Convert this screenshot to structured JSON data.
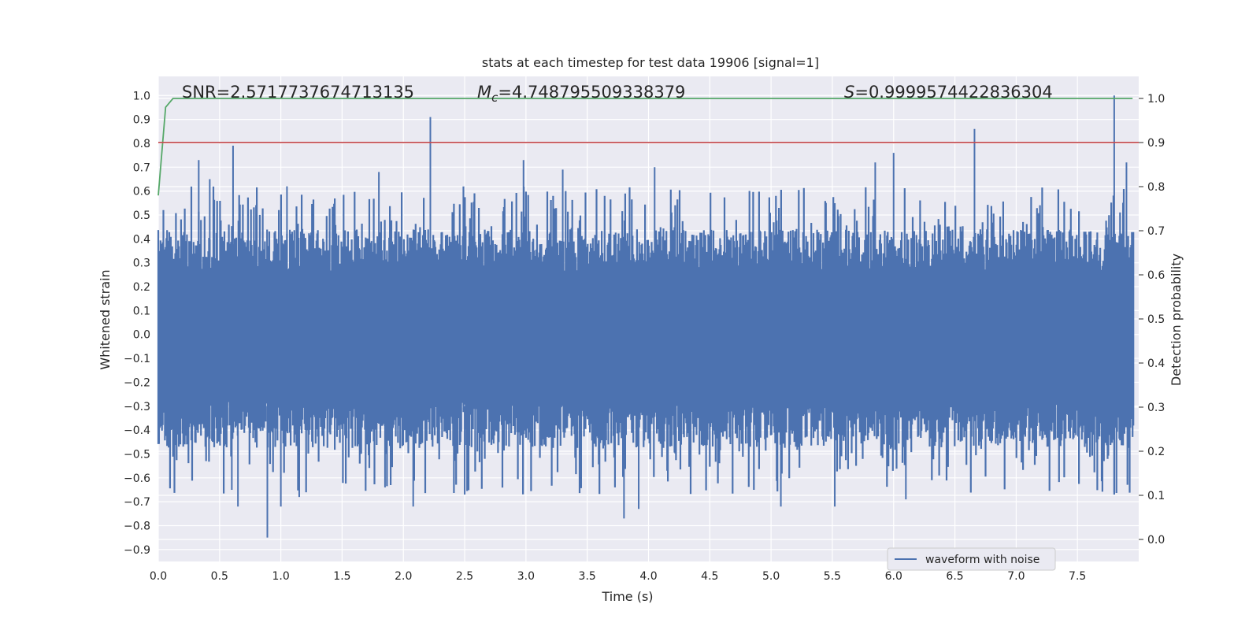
{
  "chart_data": {
    "type": "line",
    "title": "stats at each timestep for test data 19906 [signal=1]",
    "xlabel": "Time (s)",
    "ylabel": "Whitened strain",
    "y2label": "Detection probability",
    "xlim": [
      0.0,
      8.0
    ],
    "ylim": [
      -0.95,
      1.08
    ],
    "y2lim": [
      -0.05,
      1.05
    ],
    "xticks": [
      "0.0",
      "0.5",
      "1.0",
      "1.5",
      "2.0",
      "2.5",
      "3.0",
      "3.5",
      "4.0",
      "4.5",
      "5.0",
      "5.5",
      "6.0",
      "6.5",
      "7.0",
      "7.5"
    ],
    "yticks": [
      "-0.9",
      "-0.8",
      "-0.7",
      "-0.6",
      "-0.5",
      "-0.4",
      "-0.3",
      "-0.2",
      "-0.1",
      "0.0",
      "0.1",
      "0.2",
      "0.3",
      "0.4",
      "0.5",
      "0.6",
      "0.7",
      "0.8",
      "0.9",
      "1.0"
    ],
    "y2ticks": [
      "0.0",
      "0.1",
      "0.2",
      "0.3",
      "0.4",
      "0.5",
      "0.6",
      "0.7",
      "0.8",
      "0.9",
      "1.0"
    ],
    "annotations": {
      "snr": "SNR=2.5717737674713135",
      "mc_symbol": "M",
      "mc_sub": "c",
      "mc_value": "=4.748795509338379",
      "s_symbol": "S",
      "s_value": "=0.9999574422836304"
    },
    "series": [
      {
        "name": "waveform with noise",
        "axis": "left",
        "color": "#4c72b0",
        "spikes_up": [
          [
            0.33,
            0.73
          ],
          [
            0.42,
            0.65
          ],
          [
            0.61,
            0.79
          ],
          [
            1.05,
            0.62
          ],
          [
            1.8,
            0.68
          ],
          [
            2.22,
            0.91
          ],
          [
            2.98,
            0.73
          ],
          [
            3.3,
            0.69
          ],
          [
            4.05,
            0.7
          ],
          [
            5.85,
            0.72
          ],
          [
            6.0,
            0.76
          ],
          [
            6.66,
            0.86
          ],
          [
            7.8,
            1.0
          ],
          [
            7.9,
            0.72
          ]
        ],
        "spikes_down": [
          [
            0.6,
            -0.65
          ],
          [
            0.65,
            -0.72
          ],
          [
            0.89,
            -0.85
          ],
          [
            1.0,
            -0.72
          ],
          [
            1.15,
            -0.68
          ],
          [
            1.85,
            -0.64
          ],
          [
            2.08,
            -0.72
          ],
          [
            2.5,
            -0.67
          ],
          [
            3.8,
            -0.77
          ],
          [
            3.92,
            -0.73
          ],
          [
            5.08,
            -0.72
          ],
          [
            5.52,
            -0.72
          ],
          [
            6.1,
            -0.69
          ],
          [
            7.8,
            -0.66
          ]
        ]
      },
      {
        "name": "",
        "axis": "right",
        "color": "#55a868",
        "x": [
          0.0,
          0.06,
          0.12,
          7.95
        ],
        "y": [
          0.78,
          0.98,
          1.0,
          1.0
        ]
      },
      {
        "name": "",
        "axis": "right",
        "color": "#c44e52",
        "x": [
          0.0,
          8.0
        ],
        "y": [
          0.9,
          0.9
        ]
      }
    ],
    "grid": true,
    "legend_position": "lower-right"
  }
}
